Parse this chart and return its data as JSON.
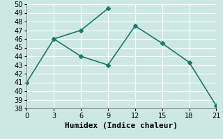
{
  "series1_x": [
    0,
    3,
    6,
    9
  ],
  "series1_y": [
    41,
    46,
    47,
    49.5
  ],
  "series2_x": [
    3,
    6,
    9,
    12,
    15,
    18,
    21
  ],
  "series2_y": [
    46,
    44,
    43,
    47.5,
    45.5,
    43.3,
    38.3
  ],
  "line_color": "#1a7a6e",
  "bg_color": "#cde8e3",
  "grid_color": "#ffffff",
  "xlabel": "Humidex (Indice chaleur)",
  "xlim": [
    0,
    21
  ],
  "ylim": [
    38,
    50
  ],
  "xticks": [
    0,
    3,
    6,
    9,
    12,
    15,
    18,
    21
  ],
  "yticks": [
    38,
    39,
    40,
    41,
    42,
    43,
    44,
    45,
    46,
    47,
    48,
    49,
    50
  ],
  "marker": "D",
  "markersize": 3,
  "linewidth": 1.2,
  "xlabel_fontsize": 8,
  "tick_fontsize": 7
}
